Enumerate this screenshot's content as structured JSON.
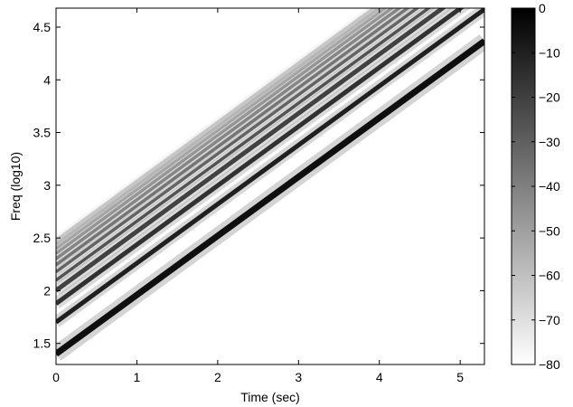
{
  "chart_data": {
    "type": "heatmap",
    "title": "",
    "xlabel": "Time (sec)",
    "ylabel": "Freq (log10)",
    "xlim": [
      0,
      5.3
    ],
    "ylim": [
      1.3,
      4.68
    ],
    "x_ticks": [
      0,
      1,
      2,
      3,
      4,
      5
    ],
    "y_ticks": [
      1.5,
      2,
      2.5,
      3,
      3.5,
      4,
      4.5
    ],
    "x_tick_labels": [
      "0",
      "1",
      "2",
      "3",
      "4",
      "5"
    ],
    "y_tick_labels": [
      "1.5",
      "2",
      "2.5",
      "3",
      "3.5",
      "4",
      "4.5"
    ],
    "colormap": "gray",
    "colorbar": {
      "range": [
        -80,
        0
      ],
      "ticks": [
        0,
        -10,
        -20,
        -30,
        -40,
        -50,
        -60,
        -70,
        -80
      ],
      "tick_labels": [
        "0",
        "−10",
        "−20",
        "−30",
        "−40",
        "−50",
        "−60",
        "−70",
        "−80"
      ],
      "placement": "right"
    },
    "harmonic_lines": {
      "fundamental_log10_at_t0": 1.4,
      "slope_log10_per_sec": 0.56,
      "harmonic_count": 12
    }
  }
}
